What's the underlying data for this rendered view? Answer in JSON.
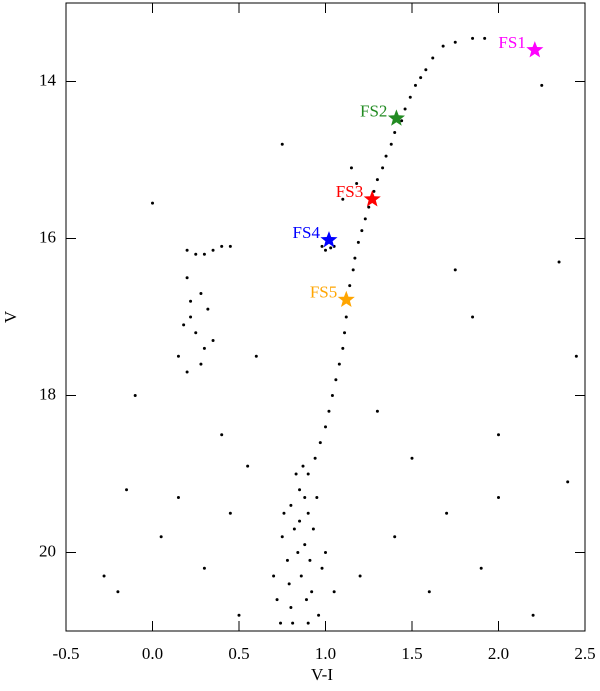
{
  "chart_data": {
    "type": "scatter",
    "xlabel": "V-I",
    "ylabel": "V",
    "xlim": [
      -0.5,
      2.5
    ],
    "ylim": [
      21,
      13
    ],
    "xticks": [
      -0.5,
      {
        "value": 0,
        "label": "0.0"
      },
      0.5,
      {
        "value": 1,
        "label": "1.0"
      },
      1.5,
      {
        "value": 2,
        "label": "2.0"
      },
      2.5
    ],
    "yticks": [
      14,
      16,
      18,
      20
    ],
    "points": {
      "color": "#000000",
      "x": [
        1.92,
        1.85,
        1.75,
        1.68,
        1.62,
        1.58,
        1.55,
        1.52,
        1.49,
        1.46,
        1.44,
        1.4,
        1.38,
        1.35,
        1.33,
        1.3,
        1.28,
        1.25,
        1.23,
        1.21,
        1.19,
        1.17,
        1.16,
        1.14,
        1.13,
        1.12,
        1.11,
        1.1,
        1.08,
        1.06,
        1.04,
        1.02,
        1.0,
        0.97,
        0.94,
        0.9,
        0.98,
        1.0,
        1.03,
        1.05,
        1.1,
        1.15,
        1.18,
        0.2,
        0.25,
        0.3,
        0.35,
        0.4,
        0.45,
        0.2,
        0.22,
        0.28,
        0.32,
        0.18,
        0.25,
        0.3,
        0.15,
        0.2,
        0.35,
        0.22,
        0.28,
        0.85,
        0.8,
        0.9,
        0.82,
        0.88,
        0.78,
        0.86,
        0.92,
        0.8,
        0.9,
        0.75,
        0.95,
        0.83,
        0.87,
        0.84,
        0.79,
        0.96,
        0.72,
        0.98,
        0.76,
        0.93,
        0.81,
        0.89,
        0.85,
        0.74,
        1.0,
        1.05,
        0.7,
        0.88,
        0.91,
        0.0,
        0.6,
        0.4,
        -0.1,
        -0.15,
        -0.2,
        -0.28,
        0.05,
        0.3,
        0.45,
        0.5,
        1.3,
        1.5,
        1.7,
        2.0,
        1.6,
        1.9,
        2.2,
        2.4,
        2.35,
        2.25,
        1.75,
        2.0,
        1.4,
        1.2,
        0.75,
        2.45,
        1.85,
        0.55,
        0.15
      ],
      "y": [
        13.45,
        13.45,
        13.5,
        13.55,
        13.7,
        13.85,
        13.95,
        14.05,
        14.2,
        14.35,
        14.5,
        14.65,
        14.8,
        14.95,
        15.1,
        15.25,
        15.4,
        15.6,
        15.75,
        15.9,
        16.05,
        16.25,
        16.4,
        16.6,
        16.8,
        17.0,
        17.2,
        17.4,
        17.6,
        17.8,
        18.0,
        18.2,
        18.4,
        18.6,
        18.8,
        19.0,
        16.1,
        16.15,
        16.12,
        16.1,
        15.5,
        15.1,
        15.3,
        16.15,
        16.2,
        16.2,
        16.15,
        16.1,
        16.1,
        16.5,
        16.8,
        16.7,
        16.9,
        17.1,
        17.2,
        17.4,
        17.5,
        17.7,
        17.3,
        17.0,
        17.6,
        19.2,
        19.4,
        19.5,
        19.7,
        19.9,
        20.1,
        20.3,
        20.5,
        20.7,
        20.9,
        19.8,
        19.3,
        19.0,
        18.9,
        20.0,
        20.4,
        20.8,
        20.6,
        20.2,
        19.5,
        19.7,
        20.9,
        20.6,
        19.6,
        20.9,
        20.0,
        20.5,
        20.3,
        19.3,
        20.1,
        15.55,
        17.5,
        18.5,
        18.0,
        19.2,
        20.5,
        20.3,
        19.8,
        20.2,
        19.5,
        20.8,
        18.2,
        18.8,
        19.5,
        19.3,
        20.5,
        20.2,
        20.8,
        19.1,
        16.3,
        14.05,
        16.4,
        18.5,
        19.8,
        20.3,
        14.8,
        17.5,
        17.0,
        18.9,
        19.3
      ]
    },
    "stars": [
      {
        "name": "FS1",
        "color": "#ff00ff",
        "x": 2.21,
        "y": 13.6
      },
      {
        "name": "FS2",
        "color": "#228b22",
        "x": 1.41,
        "y": 14.47
      },
      {
        "name": "FS3",
        "color": "#ff0000",
        "x": 1.27,
        "y": 15.5
      },
      {
        "name": "FS4",
        "color": "#0000ff",
        "x": 1.02,
        "y": 16.02
      },
      {
        "name": "FS5",
        "color": "#ffa500",
        "x": 1.12,
        "y": 16.78
      }
    ]
  }
}
